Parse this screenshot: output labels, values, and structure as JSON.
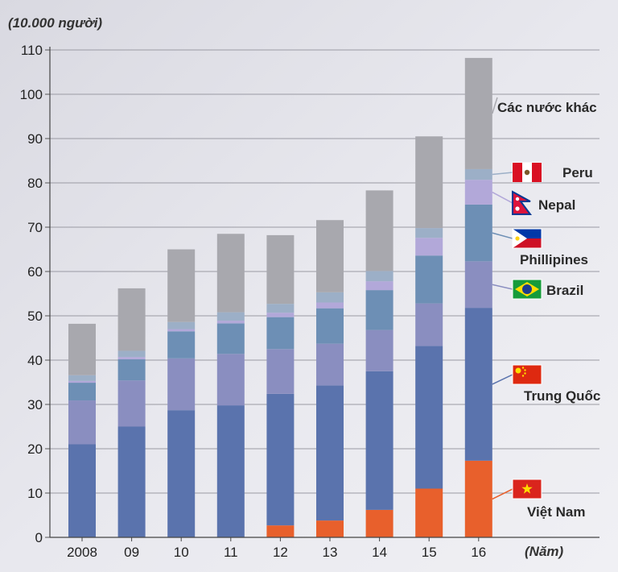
{
  "chart_data": {
    "type": "bar",
    "stacked": true,
    "y_unit_label": "(10.000 người)",
    "x_unit_label": "(Năm)",
    "categories": [
      "2008",
      "09",
      "10",
      "11",
      "12",
      "13",
      "14",
      "15",
      "16"
    ],
    "ylim": [
      0,
      110
    ],
    "yticks": [
      0,
      10,
      20,
      30,
      40,
      50,
      60,
      70,
      80,
      90,
      100,
      110
    ],
    "grid": true,
    "legend_placement": "right",
    "series": [
      {
        "name": "Việt Nam",
        "color": "#e8602c",
        "flag": "vietnam-flag",
        "values": [
          0,
          0,
          0,
          0,
          2.7,
          3.8,
          6.2,
          11.0,
          17.3
        ]
      },
      {
        "name": "Trung Quốc",
        "color": "#5a73ad",
        "flag": "china-flag",
        "values": [
          21.0,
          25.0,
          28.7,
          29.8,
          29.7,
          30.5,
          31.3,
          32.2,
          34.5
        ]
      },
      {
        "name": "Brazil",
        "color": "#8a8ec0",
        "flag": "brazil-flag",
        "values": [
          9.9,
          10.4,
          11.7,
          11.6,
          10.1,
          9.4,
          9.3,
          9.6,
          10.5
        ]
      },
      {
        "name": "Phillipines",
        "color": "#6d8fb5",
        "flag": "philippines-flag",
        "values": [
          4.0,
          4.8,
          6.1,
          6.9,
          7.2,
          8.0,
          9.0,
          10.8,
          12.8
        ]
      },
      {
        "name": "Nepal",
        "color": "#b2a8d9",
        "flag": "nepal-flag",
        "values": [
          0.4,
          0.5,
          0.5,
          0.6,
          1.0,
          1.3,
          2.0,
          4.0,
          5.6
        ]
      },
      {
        "name": "Peru",
        "color": "#9cafc7",
        "flag": "peru-flag",
        "values": [
          1.3,
          1.4,
          1.6,
          1.9,
          2.0,
          2.3,
          2.3,
          2.2,
          2.4
        ]
      },
      {
        "name": "Các nước khác",
        "color": "#a8a8ae",
        "flag": "",
        "values": [
          11.6,
          14.1,
          16.4,
          17.7,
          15.5,
          16.3,
          18.2,
          20.7,
          25.1
        ]
      }
    ]
  }
}
